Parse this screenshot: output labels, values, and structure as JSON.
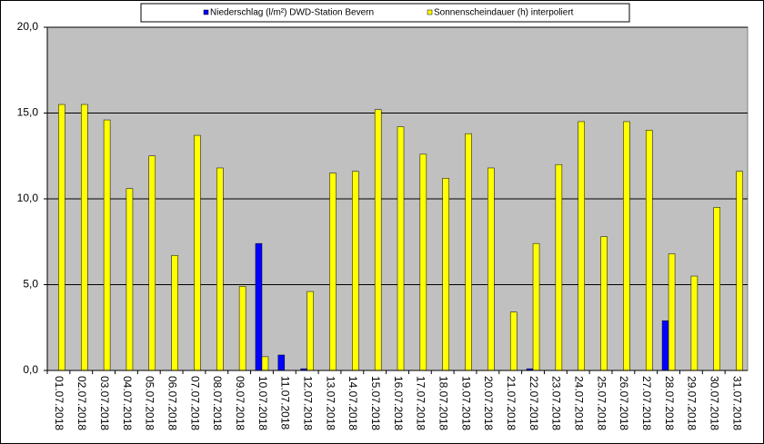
{
  "chart_data": {
    "type": "bar",
    "categories": [
      "01.07.2018",
      "02.07.2018",
      "03.07.2018",
      "04.07.2018",
      "05.07.2018",
      "06.07.2018",
      "07.07.2018",
      "08.07.2018",
      "09.07.2018",
      "10.07.2018",
      "11.07.2018",
      "12.07.2018",
      "13.07.2018",
      "14.07.2018",
      "15.07.2018",
      "16.07.2018",
      "17.07.2018",
      "18.07.2018",
      "19.07.2018",
      "20.07.2018",
      "21.07.2018",
      "22.07.2018",
      "23.07.2018",
      "24.07.2018",
      "25.07.2018",
      "26.07.2018",
      "27.07.2018",
      "28.07.2018",
      "29.07.2018",
      "30.07.2018",
      "31.07.2018"
    ],
    "series": [
      {
        "name": "Niederschlag (l/m²) DWD-Station Bevern",
        "color": "#0000ff",
        "values": [
          0,
          0,
          0,
          0,
          0,
          0,
          0,
          0,
          0,
          7.4,
          0.9,
          0.1,
          0,
          0,
          0,
          0,
          0,
          0,
          0,
          0,
          0,
          0.1,
          0,
          0,
          0,
          0,
          0,
          2.9,
          0,
          0,
          0
        ]
      },
      {
        "name": "Sonnenscheindauer (h) interpoliert",
        "color": "#ffff00",
        "values": [
          15.5,
          15.5,
          14.6,
          10.6,
          12.5,
          6.7,
          13.7,
          11.8,
          4.9,
          0.8,
          0,
          4.6,
          11.5,
          11.6,
          15.2,
          14.2,
          12.6,
          11.2,
          13.8,
          11.8,
          3.4,
          7.4,
          12.0,
          14.5,
          7.8,
          14.5,
          14.0,
          6.8,
          5.5,
          9.5,
          11.6
        ]
      }
    ],
    "ylim": [
      0,
      20
    ],
    "yticks": [
      {
        "value": 0,
        "label": "0,0"
      },
      {
        "value": 5,
        "label": "5,0"
      },
      {
        "value": 10,
        "label": "10,0"
      },
      {
        "value": 15,
        "label": "15,0"
      },
      {
        "value": 20,
        "label": "20,0"
      }
    ],
    "grid": true,
    "plot_background": "#c0c0c0",
    "legend": "top"
  }
}
